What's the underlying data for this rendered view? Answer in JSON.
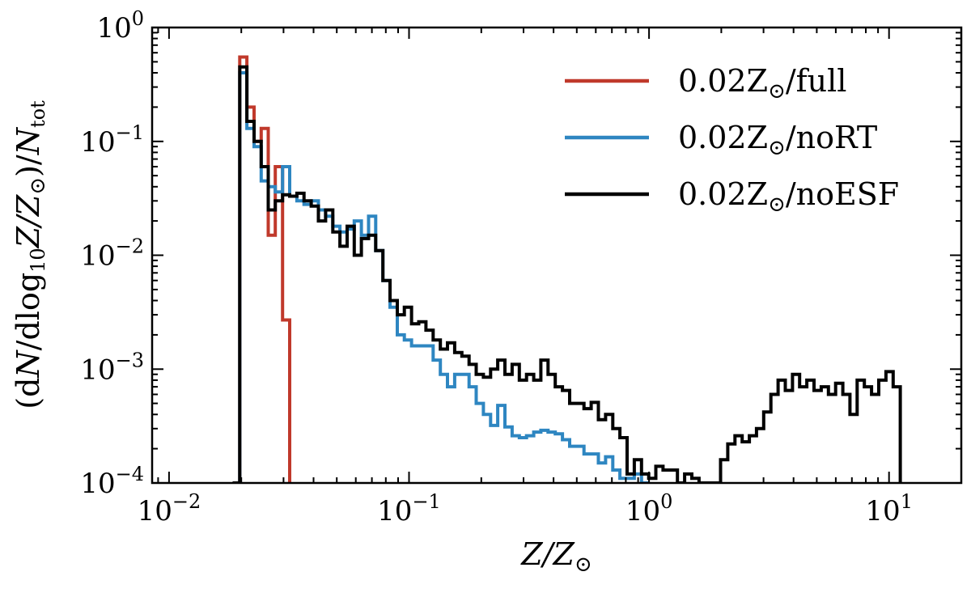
{
  "chart_data": {
    "type": "line",
    "drawstyle": "steps",
    "xscale": "log",
    "yscale": "log",
    "xlim": [
      0.0085,
      20
    ],
    "ylim": [
      0.0001,
      1
    ],
    "xlabel": "Z/Z⊙",
    "ylabel": "(dN/dlog10Z/Z⊙)/Ntot",
    "xlabel_parts": {
      "main": "Z/Z",
      "sub": "⊙"
    },
    "ylabel_parts": {
      "a": "(d",
      "b": "N",
      "c": "/dlog",
      "d": "10",
      "e": "Z/Z",
      "f": "⊙",
      "g": ")/",
      "h": "N",
      "i": "tot"
    },
    "xticks": [
      {
        "value": 0.01,
        "base": "10",
        "exp": "−2"
      },
      {
        "value": 0.1,
        "base": "10",
        "exp": "−1"
      },
      {
        "value": 1,
        "base": "10",
        "exp": "0"
      },
      {
        "value": 10,
        "base": "10",
        "exp": "1"
      }
    ],
    "yticks": [
      {
        "value": 0.0001,
        "base": "10",
        "exp": "−4"
      },
      {
        "value": 0.001,
        "base": "10",
        "exp": "−3"
      },
      {
        "value": 0.01,
        "base": "10",
        "exp": "−2"
      },
      {
        "value": 0.1,
        "base": "10",
        "exp": "−1"
      },
      {
        "value": 1,
        "base": "10",
        "exp": "0"
      }
    ],
    "legend_position": "top-right",
    "series": [
      {
        "name": "0.02Z⊙/full",
        "label_parts": {
          "a": "0.02Z",
          "b": "⊙",
          "c": "/full"
        },
        "color": "#c0392b",
        "edges": [
          0.0184,
          0.0197,
          0.0211,
          0.0226,
          0.0242,
          0.0259,
          0.0277,
          0.0297,
          0.0318
        ],
        "values": [
          0.0001,
          0.55,
          0.2,
          0.1,
          0.13,
          0.015,
          0.06,
          0.0027
        ]
      },
      {
        "name": "0.02Z⊙/noRT",
        "label_parts": {
          "a": "0.02Z",
          "b": "⊙",
          "c": "/noRT"
        },
        "color": "#2e86c1",
        "edges": [
          0.0184,
          0.0197,
          0.0211,
          0.0226,
          0.0242,
          0.0259,
          0.0277,
          0.0297,
          0.0318,
          0.0341,
          0.0365,
          0.0391,
          0.0419,
          0.0449,
          0.0481,
          0.0515,
          0.0552,
          0.0591,
          0.0633,
          0.0678,
          0.0726,
          0.0778,
          0.0833,
          0.0893,
          0.0956,
          0.1024,
          0.1097,
          0.1176,
          0.126,
          0.135,
          0.1446,
          0.1549,
          0.166,
          0.1778,
          0.1905,
          0.2041,
          0.2186,
          0.2342,
          0.2509,
          0.2688,
          0.288,
          0.3086,
          0.3306,
          0.3542,
          0.3795,
          0.4066,
          0.4356,
          0.4667,
          0.5,
          0.5357,
          0.574,
          0.6149,
          0.6588,
          0.7059,
          0.7563,
          0.8103,
          0.8681,
          0.93,
          0.9965
        ],
        "values": [
          0.0001,
          0.4,
          0.13,
          0.09,
          0.045,
          0.04,
          0.036,
          0.06,
          0.033,
          0.03,
          0.028,
          0.03,
          0.025,
          0.022,
          0.018,
          0.016,
          0.017,
          0.02,
          0.015,
          0.022,
          0.011,
          0.006,
          0.0035,
          0.002,
          0.0018,
          0.0016,
          0.0016,
          0.0016,
          0.0012,
          0.0009,
          0.0007,
          0.0009,
          0.0009,
          0.0007,
          0.0005,
          0.0004,
          0.00032,
          0.00048,
          0.00031,
          0.00026,
          0.00025,
          0.00026,
          0.00028,
          0.00029,
          0.00028,
          0.00027,
          0.00024,
          0.00021,
          0.00021,
          0.00018,
          0.00018,
          0.00015,
          0.00017,
          0.00013,
          0.00011,
          0.00011,
          0.00012,
          0.0001
        ]
      },
      {
        "name": "0.02Z⊙/noESF",
        "label_parts": {
          "a": "0.02Z",
          "b": "⊙",
          "c": "/noESF"
        },
        "color": "#000000",
        "edges": [
          0.0184,
          0.0197,
          0.0211,
          0.0226,
          0.0242,
          0.0259,
          0.0277,
          0.0297,
          0.0318,
          0.0341,
          0.0365,
          0.0391,
          0.0419,
          0.0449,
          0.0481,
          0.0515,
          0.0552,
          0.0591,
          0.0633,
          0.0678,
          0.0726,
          0.0778,
          0.0833,
          0.0893,
          0.0956,
          0.1024,
          0.1097,
          0.1176,
          0.126,
          0.135,
          0.1446,
          0.1549,
          0.166,
          0.1778,
          0.1905,
          0.2041,
          0.2186,
          0.2342,
          0.2509,
          0.2688,
          0.288,
          0.3086,
          0.3306,
          0.3542,
          0.3795,
          0.4066,
          0.4356,
          0.4667,
          0.5,
          0.5357,
          0.574,
          0.6149,
          0.6588,
          0.7059,
          0.7563,
          0.8103,
          0.8681,
          0.93,
          0.9965,
          1.0676,
          1.1439,
          1.2255,
          1.313,
          1.4068,
          1.5072,
          1.6149,
          1.7302,
          1.8538,
          1.9862,
          2.128,
          2.28,
          2.4428,
          2.6172,
          2.8041,
          3.0044,
          3.219,
          3.4489,
          3.6952,
          3.9591,
          4.2418,
          4.5447,
          4.8693,
          5.217,
          5.5896,
          5.9888,
          6.4165,
          6.8747,
          7.3656,
          7.8917,
          8.4553,
          9.0591,
          9.706,
          10.399,
          11.14
        ],
        "values": [
          0.0001,
          0.45,
          0.15,
          0.1,
          0.06,
          0.025,
          0.03,
          0.034,
          0.033,
          0.035,
          0.03,
          0.027,
          0.02,
          0.025,
          0.016,
          0.012,
          0.018,
          0.01,
          0.014,
          0.015,
          0.011,
          0.006,
          0.004,
          0.003,
          0.0035,
          0.0025,
          0.0026,
          0.0022,
          0.0018,
          0.0015,
          0.0017,
          0.0014,
          0.0013,
          0.0011,
          0.0009,
          0.00085,
          0.001,
          0.0012,
          0.0009,
          0.0011,
          0.0008,
          0.0009,
          0.0008,
          0.0012,
          0.0009,
          0.0007,
          0.00065,
          0.0005,
          0.0005,
          0.00045,
          0.00051,
          0.00036,
          0.0004,
          0.0003,
          0.00025,
          0.00012,
          0.00016,
          0.00012,
          0.00011,
          0.00014,
          0.00013,
          0.00013,
          0.0001,
          0.00012,
          0.00011,
          0.0001,
          0.0001,
          0.0001,
          0.00016,
          0.00022,
          0.00026,
          0.00023,
          0.00026,
          0.0003,
          0.00042,
          0.0006,
          0.0008,
          0.00065,
          0.0009,
          0.0007,
          0.0008,
          0.00065,
          0.0007,
          0.0006,
          0.00075,
          0.0006,
          0.0004,
          0.0008,
          0.0007,
          0.0006,
          0.0008,
          0.00095,
          0.0007
        ]
      }
    ]
  }
}
